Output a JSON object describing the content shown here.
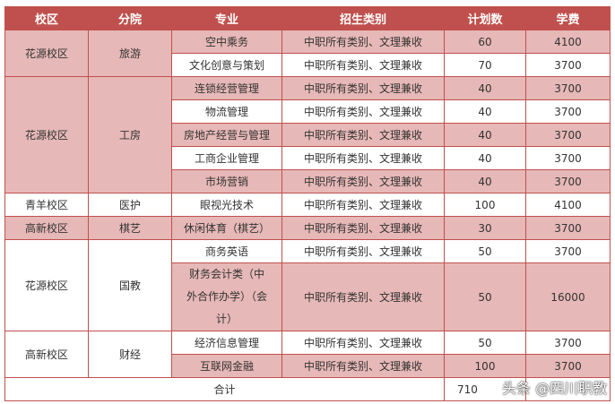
{
  "headers": [
    "校区",
    "分院",
    "专业",
    "招生类别",
    "计划数",
    "学费"
  ],
  "colors": {
    "header": "#c0504d",
    "shade": "#e6b8b7",
    "border": "#c0504d"
  },
  "groups": [
    {
      "campus": "花源校区",
      "college": "旅游",
      "shade": true,
      "rows": [
        {
          "major": "空中乘务",
          "category": "中职所有类别、文理兼收",
          "plan": "60",
          "fee": "4100",
          "shade": true
        },
        {
          "major": "文化创意与策划",
          "category": "中职所有类别、文理兼收",
          "plan": "70",
          "fee": "3700",
          "shade": false
        }
      ]
    },
    {
      "campus": "花源校区",
      "college": "工房",
      "shade": true,
      "rows": [
        {
          "major": "连锁经营管理",
          "category": "中职所有类别、文理兼收",
          "plan": "40",
          "fee": "3700",
          "shade": true
        },
        {
          "major": "物流管理",
          "category": "中职所有类别、文理兼收",
          "plan": "40",
          "fee": "3700",
          "shade": false
        },
        {
          "major": "房地产经营与管理",
          "category": "中职所有类别、文理兼收",
          "plan": "40",
          "fee": "3700",
          "shade": true
        },
        {
          "major": "工商企业管理",
          "category": "中职所有类别、文理兼收",
          "plan": "40",
          "fee": "3700",
          "shade": false
        },
        {
          "major": "市场营销",
          "category": "中职所有类别、文理兼收",
          "plan": "40",
          "fee": "3700",
          "shade": true
        }
      ]
    },
    {
      "campus": "青羊校区",
      "college": "医护",
      "shade": false,
      "rows": [
        {
          "major": "眼视光技术",
          "category": "中职所有类别、文理兼收",
          "plan": "100",
          "fee": "4100",
          "shade": false
        }
      ]
    },
    {
      "campus": "高新校区",
      "college": "棋艺",
      "shade": true,
      "rows": [
        {
          "major": "休闲体育（棋艺）",
          "category": "中职所有类别、文理兼收",
          "plan": "30",
          "fee": "3700",
          "shade": true
        }
      ]
    },
    {
      "campus": "花源校区",
      "college": "国教",
      "shade": false,
      "rows": [
        {
          "major": "商务英语",
          "category": "中职所有类别、文理兼收",
          "plan": "50",
          "fee": "3700",
          "shade": false
        },
        {
          "major": "财务会计类（中外合作办学）（会计）",
          "category": "中职所有类别、文理兼收",
          "plan": "50",
          "fee": "16000",
          "shade": true,
          "tall": true
        }
      ]
    },
    {
      "campus": "高新校区",
      "college": "财经",
      "shade": false,
      "rows": [
        {
          "major": "经济信息管理",
          "category": "中职所有类别、文理兼收",
          "plan": "50",
          "fee": "3700",
          "shade": false
        },
        {
          "major": "互联网金融",
          "category": "中职所有类别、文理兼收",
          "plan": "100",
          "fee": "3700",
          "shade": true
        }
      ]
    }
  ],
  "total": {
    "label": "合计",
    "plan": "710",
    "fee": ""
  },
  "watermark": "头条 @四川职教"
}
